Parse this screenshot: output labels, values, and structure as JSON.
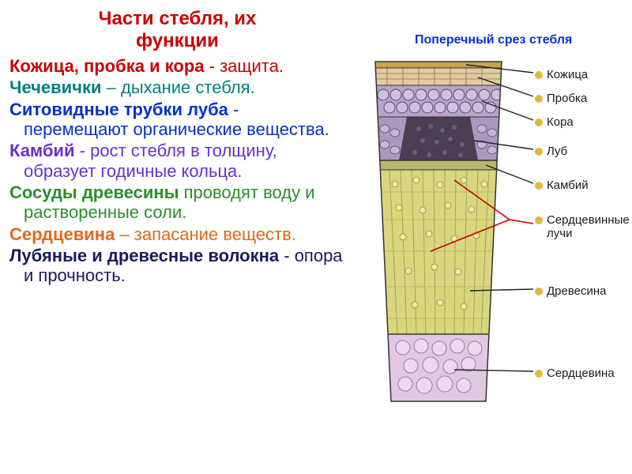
{
  "title_l1": "Части стебля, их",
  "title_l2": "функции",
  "items": [
    {
      "term": "Кожица, пробка и кора",
      "sep": " - ",
      "rest": "защита.",
      "color": "c-red"
    },
    {
      "term": "Чечевички",
      "sep": " – ",
      "rest": "дыхание стебля.",
      "color": "c-teal"
    },
    {
      "term": "Ситовидные  трубки луба",
      "sep": " - ",
      "rest": "перемещают органические вещества.",
      "color": "c-blue"
    },
    {
      "term": "Камбий",
      "sep": " - ",
      "rest": "рост стебля в толщину, образует годичные кольца.",
      "color": "c-purple"
    },
    {
      "term": " Сосуды  древесины",
      "sep": " ",
      "rest": "проводят  воду  и растворенные соли.",
      "color": "c-green"
    },
    {
      "term": "Сердцевина",
      "sep": " – ",
      "rest": "запасание веществ.",
      "color": "c-orange"
    },
    {
      "term": "Лубяные и древесные волокна",
      "sep": "  - ",
      "rest": "опора и прочность.",
      "color": "c-darkblue"
    }
  ],
  "diagram": {
    "title": "Поперечный срез стебля",
    "labels": {
      "epidermis": "Кожица",
      "cork": "Пробка",
      "bark": "Кора",
      "bast": "Луб",
      "cambium": "Камбий",
      "rays_l1": "Сердцевинные",
      "rays_l2": "лучи",
      "wood": "Древесина",
      "pith": "Сердцевина"
    },
    "colors": {
      "bullet": "#e0bb3a",
      "epidermis_fill": "#c9a348",
      "cork_fill": "#e4caa3",
      "bark_fill": "#b8a3c9",
      "bast_fill": "#a998c0",
      "dark_band": "#4a3f52",
      "cambium_fill": "#b9b56a",
      "wood_fill": "#d9d77e",
      "wood_light": "#eceaa0",
      "pith_fill": "#dec9e0",
      "cell_stroke": "#5a4a6a",
      "ray_color": "#cc0000"
    }
  }
}
